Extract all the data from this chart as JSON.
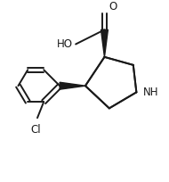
{
  "bg_color": "#ffffff",
  "line_color": "#1a1a1a",
  "line_width": 1.4,
  "font_size_label": 8.5,
  "figsize": [
    1.9,
    2.04
  ],
  "dpi": 100,
  "xlim": [
    -0.15,
    0.9
  ],
  "ylim": [
    0.05,
    1.1
  ]
}
